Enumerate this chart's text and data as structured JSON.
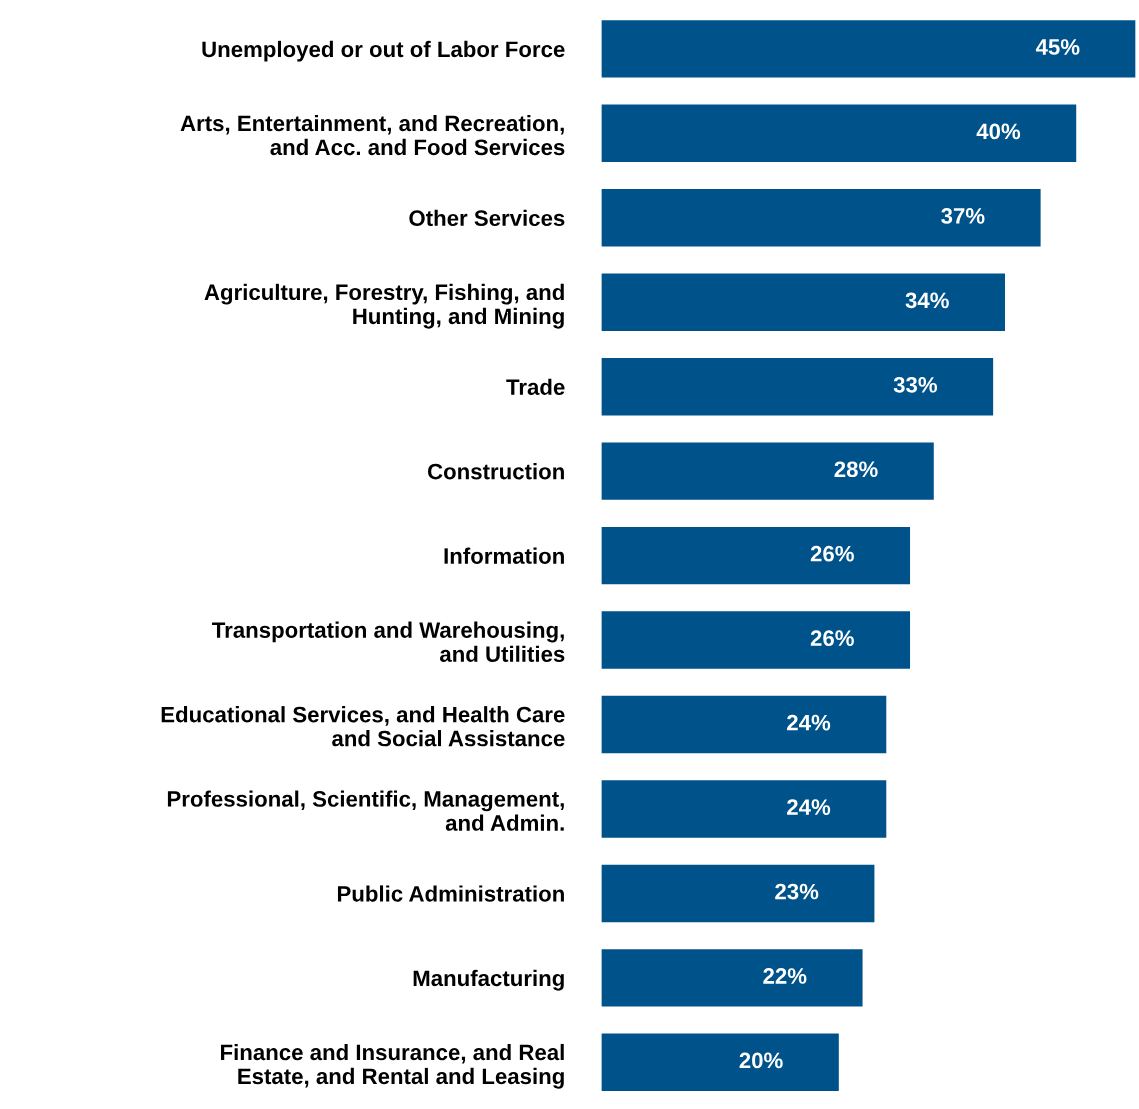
{
  "chart_data": {
    "type": "bar",
    "orientation": "horizontal",
    "color": "#00538a",
    "categories": [
      "Unemployed or out of Labor Force",
      "Arts, Entertainment, and Recreation,\nand Acc. and Food Services",
      "Other Services",
      "Agriculture, Forestry, Fishing, and\nHunting, and Mining",
      "Trade",
      "Construction",
      "Information",
      "Transportation and Warehousing,\nand Utilities",
      "Educational Services, and Health Care\nand Social Assistance",
      "Professional, Scientific, Management,\nand Admin.",
      "Public Administration",
      "Manufacturing",
      "Finance and Insurance, and Real\nEstate, and Rental and Leasing"
    ],
    "values": [
      45,
      40,
      37,
      34,
      33,
      28,
      26,
      26,
      24,
      24,
      23,
      22,
      20
    ],
    "value_labels": [
      "45%",
      "40%",
      "37%",
      "34%",
      "33%",
      "28%",
      "26%",
      "26%",
      "24%",
      "24%",
      "23%",
      "22%",
      "20%"
    ]
  }
}
